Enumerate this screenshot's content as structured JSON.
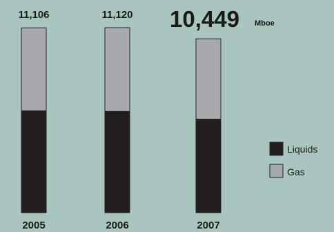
{
  "chart_data": {
    "type": "bar",
    "stacked": true,
    "categories": [
      "2005",
      "2006",
      "2007"
    ],
    "series": [
      {
        "name": "Liquids",
        "values": [
          6120,
          6085,
          5620
        ],
        "color": "#231f20"
      },
      {
        "name": "Gas",
        "values": [
          4986,
          5035,
          4829
        ],
        "color": "#a7a9ac"
      }
    ],
    "totals": [
      "11,106",
      "11,120",
      "10,449"
    ],
    "highlight_index": 2,
    "unit": "Mboe",
    "category_colors": [
      "#1a1a1a",
      "#1a1a1a",
      "#d2e1dd"
    ],
    "legend_position": "right",
    "ylim": [
      0,
      11120
    ]
  }
}
